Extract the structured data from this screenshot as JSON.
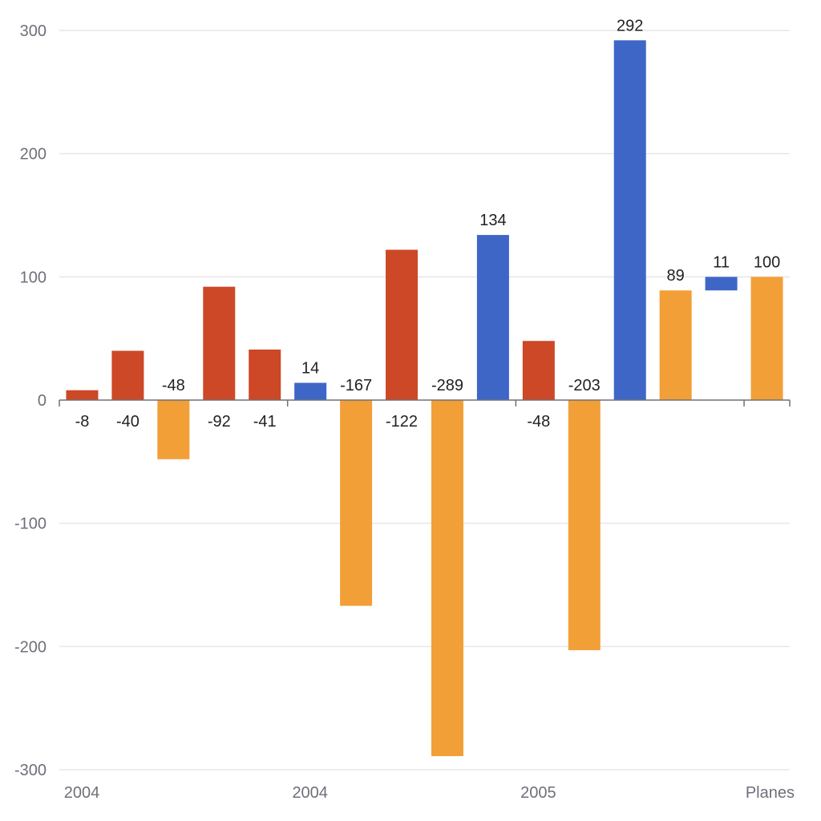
{
  "chart_data": {
    "type": "bar",
    "subtype": "waterfall",
    "y_ticks": [
      300,
      200,
      100,
      0,
      -100,
      -200,
      -300
    ],
    "ylim": [
      -300,
      300
    ],
    "grid": true,
    "legend": "none",
    "x_labels": [
      "2004",
      "2004",
      "2005",
      "Planes"
    ],
    "colors": {
      "decrease": "#cc4826",
      "negative": "#f29f38",
      "total": "#3e66c6",
      "grid": "#e6e6ec",
      "axis": "#6e7079"
    },
    "bars": [
      {
        "base": 0,
        "value": 8,
        "label": "-8",
        "kind": "decrease"
      },
      {
        "base": 0,
        "value": 40,
        "label": "-40",
        "kind": "decrease"
      },
      {
        "base": 0,
        "value": -48,
        "label": "-48",
        "kind": "negative"
      },
      {
        "base": 0,
        "value": 92,
        "label": "-92",
        "kind": "decrease"
      },
      {
        "base": 0,
        "value": 41,
        "label": "-41",
        "kind": "decrease"
      },
      {
        "base": 0,
        "value": 14,
        "label": "14",
        "kind": "total"
      },
      {
        "base": 0,
        "value": -167,
        "label": "-167",
        "kind": "negative"
      },
      {
        "base": 0,
        "value": 122,
        "label": "-122",
        "kind": "decrease"
      },
      {
        "base": 0,
        "value": -289,
        "label": "-289",
        "kind": "negative"
      },
      {
        "base": 0,
        "value": 134,
        "label": "134",
        "kind": "total"
      },
      {
        "base": 0,
        "value": 48,
        "label": "-48",
        "kind": "decrease"
      },
      {
        "base": 0,
        "value": -203,
        "label": "-203",
        "kind": "negative"
      },
      {
        "base": 0,
        "value": 292,
        "label": "292",
        "kind": "total"
      },
      {
        "base": 0,
        "value": 89,
        "label": "89",
        "kind": "negative"
      },
      {
        "base": 89,
        "value": 100,
        "label": "11",
        "kind": "total"
      },
      {
        "base": 0,
        "value": 100,
        "label": "100",
        "kind": "negative"
      }
    ]
  }
}
